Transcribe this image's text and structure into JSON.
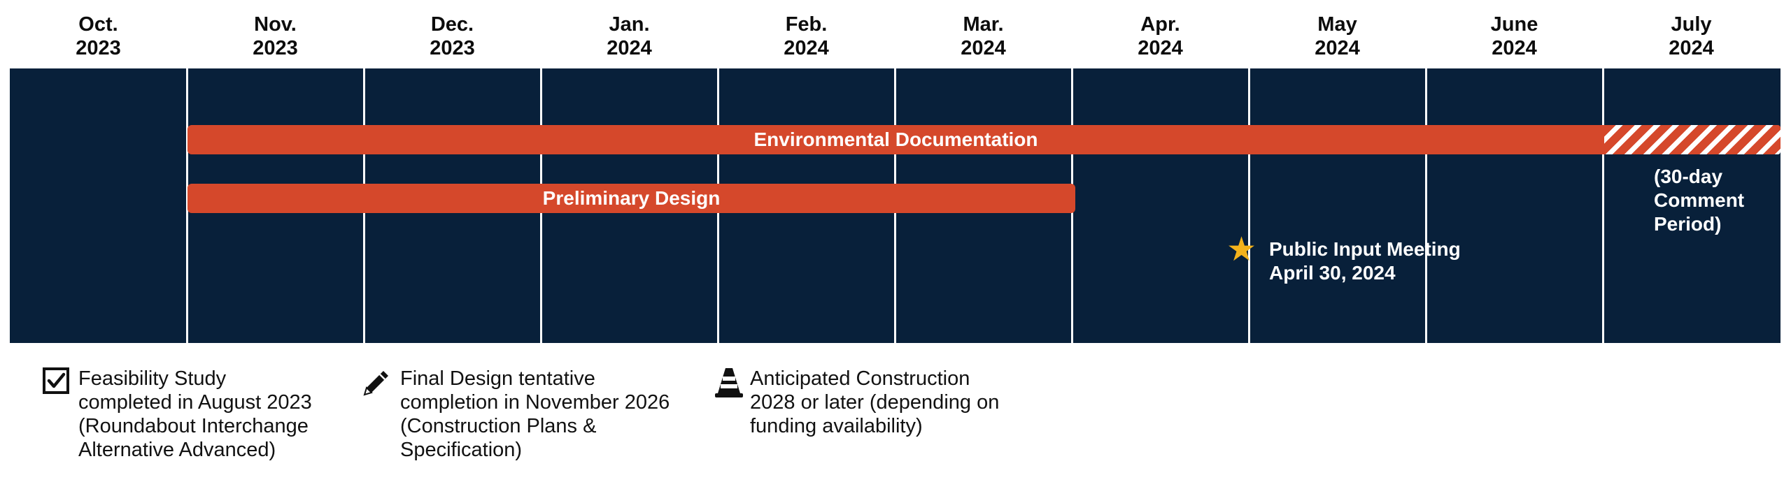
{
  "months": [
    {
      "month": "Oct.",
      "year": "2023"
    },
    {
      "month": "Nov.",
      "year": "2023"
    },
    {
      "month": "Dec.",
      "year": "2023"
    },
    {
      "month": "Jan.",
      "year": "2024"
    },
    {
      "month": "Feb.",
      "year": "2024"
    },
    {
      "month": "Mar.",
      "year": "2024"
    },
    {
      "month": "Apr.",
      "year": "2024"
    },
    {
      "month": "May",
      "year": "2024"
    },
    {
      "month": "June",
      "year": "2024"
    },
    {
      "month": "July",
      "year": "2024"
    }
  ],
  "bars": {
    "environmental": {
      "label": "Environmental Documentation",
      "start": "Nov. 2023",
      "end": "July 2024"
    },
    "environmental_comment": {
      "lines": [
        "(30-day",
        "Comment",
        "Period)"
      ]
    },
    "preliminary": {
      "label": "Preliminary Design",
      "start": "Nov. 2023",
      "end": "Mar. 2024"
    }
  },
  "milestone": {
    "icon": "star-icon",
    "lines": [
      "Public Input Meeting",
      "April 30, 2024"
    ]
  },
  "legend": [
    {
      "icon": "checkbox-checked-icon",
      "lines": [
        "Feasibility Study",
        "completed in August 2023",
        "(Roundabout Interchange",
        "Alternative Advanced)"
      ]
    },
    {
      "icon": "pencil-icon",
      "lines": [
        "Final Design tentative",
        "completion in November 2026",
        "(Construction Plans &",
        "Specification)"
      ]
    },
    {
      "icon": "traffic-cone-icon",
      "lines": [
        "Anticipated Construction",
        "2028 or later (depending on",
        "funding availability)"
      ]
    }
  ],
  "colors": {
    "background": "#08203a",
    "bar": "#d5482b",
    "star": "#f3b21c",
    "gridline": "#ffffff"
  }
}
